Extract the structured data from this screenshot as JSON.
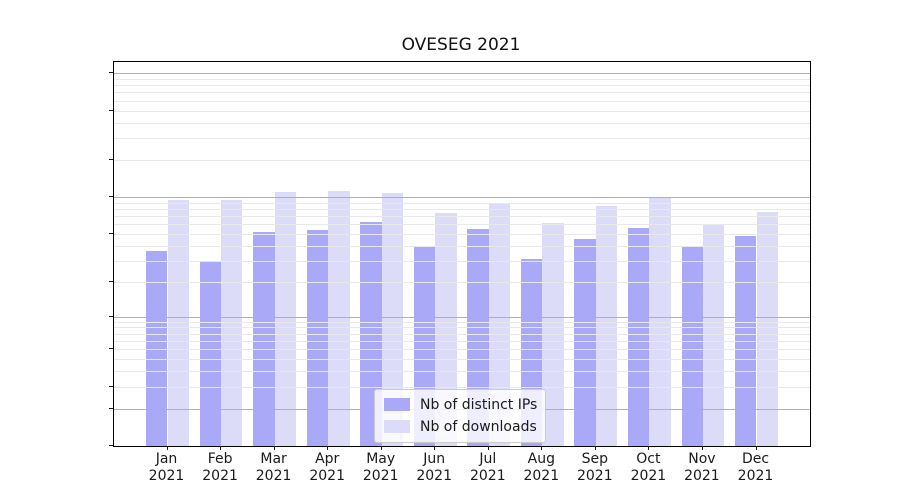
{
  "title": "OVESEG 2021",
  "colors": {
    "ips": "#a9a9f8",
    "downloads": "#dcdcf8",
    "grid_major": "#b0b0b0",
    "grid_minor": "#e8e8e8",
    "spine": "#000000",
    "legend_border": "#cccccc"
  },
  "legend": {
    "items": [
      {
        "label": "Nb of distinct IPs",
        "color_key": "ips"
      },
      {
        "label": "Nb of downloads",
        "color_key": "downloads"
      }
    ]
  },
  "chart_data": {
    "type": "bar",
    "title": "OVESEG 2021",
    "categories": [
      "Jan 2021",
      "Feb 2021",
      "Mar 2021",
      "Apr 2021",
      "May 2021",
      "Jun 2021",
      "Jul 2021",
      "Aug 2021",
      "Sep 2021",
      "Oct 2021",
      "Nov 2021",
      "Dec 2021"
    ],
    "series": [
      {
        "name": "Nb of distinct IPs",
        "values": [
          36,
          30,
          52,
          54,
          62,
          40,
          55,
          31,
          45,
          56,
          39,
          48
        ]
      },
      {
        "name": "Nb of downloads",
        "values": [
          94,
          94,
          110,
          112,
          107,
          74,
          90,
          61,
          84,
          100,
          59,
          76
        ]
      }
    ],
    "xlabel": "",
    "ylabel": "",
    "yscale": "log1p",
    "yticks": [
      0,
      1,
      2,
      5,
      10,
      20,
      50,
      100,
      200,
      500,
      1000
    ],
    "ylim": [
      0,
      1230
    ],
    "grid": true,
    "grid_above_bars": true,
    "legend_position": "lower center"
  }
}
